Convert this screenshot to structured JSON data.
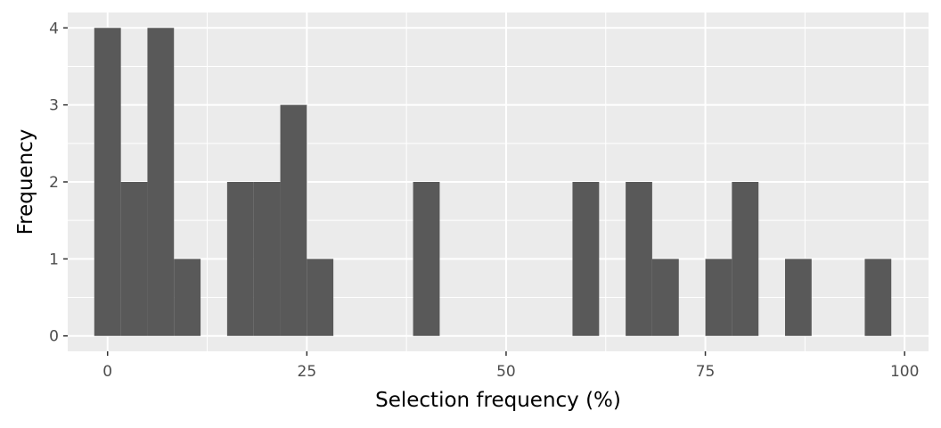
{
  "chart_data": {
    "type": "histogram",
    "xlabel": "Selection frequency (%)",
    "ylabel": "Frequency",
    "xlim": [
      -5,
      103
    ],
    "ylim": [
      -0.2,
      4.2
    ],
    "x_ticks": [
      0,
      25,
      50,
      75,
      100
    ],
    "y_ticks": [
      0,
      1,
      2,
      3,
      4
    ],
    "bin_width": 3.33,
    "bins": [
      {
        "start": -1.67,
        "end": 1.67,
        "count": 4
      },
      {
        "start": 1.67,
        "end": 5.0,
        "count": 2
      },
      {
        "start": 5.0,
        "end": 8.33,
        "count": 4
      },
      {
        "start": 8.33,
        "end": 11.67,
        "count": 1
      },
      {
        "start": 15.0,
        "end": 18.33,
        "count": 2
      },
      {
        "start": 18.33,
        "end": 21.67,
        "count": 2
      },
      {
        "start": 21.67,
        "end": 25.0,
        "count": 3
      },
      {
        "start": 25.0,
        "end": 28.33,
        "count": 1
      },
      {
        "start": 38.33,
        "end": 41.67,
        "count": 2
      },
      {
        "start": 58.33,
        "end": 61.67,
        "count": 2
      },
      {
        "start": 65.0,
        "end": 68.33,
        "count": 2
      },
      {
        "start": 68.33,
        "end": 71.67,
        "count": 1
      },
      {
        "start": 75.0,
        "end": 78.33,
        "count": 1
      },
      {
        "start": 78.33,
        "end": 81.67,
        "count": 2
      },
      {
        "start": 85.0,
        "end": 88.33,
        "count": 1
      },
      {
        "start": 95.0,
        "end": 98.33,
        "count": 1
      }
    ],
    "grid": true,
    "colors": {
      "panel": "#ebebeb",
      "grid": "#ffffff",
      "bar": "#595959",
      "tick_text": "#4d4d4d",
      "tick_mark": "#333333"
    }
  }
}
